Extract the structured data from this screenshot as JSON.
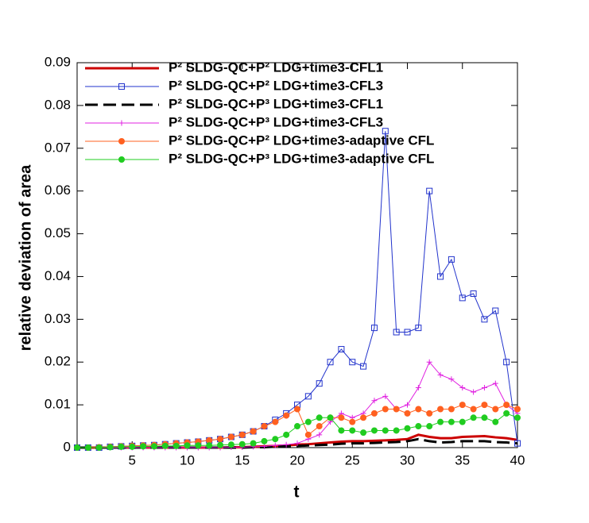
{
  "chart_data": {
    "type": "line",
    "x_label": "t",
    "y_label": "relative deviation of area",
    "x": [
      0,
      1,
      2,
      3,
      4,
      5,
      6,
      7,
      8,
      9,
      10,
      11,
      12,
      13,
      14,
      15,
      16,
      17,
      18,
      19,
      20,
      21,
      22,
      23,
      24,
      25,
      26,
      27,
      28,
      29,
      30,
      31,
      32,
      33,
      34,
      35,
      36,
      37,
      38,
      39,
      40
    ],
    "xlim": [
      0,
      40
    ],
    "xticks": [
      5,
      10,
      15,
      20,
      25,
      30,
      35,
      40
    ],
    "ylim": [
      0,
      0.09
    ],
    "yticks": [
      0,
      0.01,
      0.02,
      0.03,
      0.04,
      0.05,
      0.06,
      0.07,
      0.08,
      0.09
    ],
    "legend": "top",
    "series": [
      {
        "name": "P² SLDG-QC+P² LDG+time3-CFL1",
        "color": "#cc0000",
        "line": "thick-solid",
        "marker": "none",
        "values": [
          0,
          0,
          0,
          0,
          0,
          0,
          0,
          0,
          0,
          0,
          0,
          0,
          0,
          0,
          0.0001,
          0.0001,
          0.0002,
          0.0003,
          0.0004,
          0.0005,
          0.0007,
          0.0008,
          0.001,
          0.0012,
          0.0014,
          0.0015,
          0.0015,
          0.0016,
          0.0017,
          0.0018,
          0.002,
          0.003,
          0.0025,
          0.0022,
          0.0022,
          0.0025,
          0.0026,
          0.0027,
          0.0024,
          0.0022,
          0.0018
        ]
      },
      {
        "name": "P² SLDG-QC+P² LDG+time3-CFL3",
        "color": "#2233cc",
        "line": "thin",
        "marker": "square",
        "values": [
          0,
          0,
          0,
          0.0002,
          0.0003,
          0.0004,
          0.0005,
          0.0006,
          0.0008,
          0.001,
          0.0012,
          0.0014,
          0.0017,
          0.002,
          0.0025,
          0.003,
          0.0038,
          0.005,
          0.0065,
          0.008,
          0.01,
          0.012,
          0.015,
          0.02,
          0.023,
          0.02,
          0.019,
          0.028,
          0.074,
          0.027,
          0.027,
          0.028,
          0.06,
          0.04,
          0.044,
          0.035,
          0.036,
          0.03,
          0.032,
          0.02,
          0.001
        ]
      },
      {
        "name": "P² SLDG-QC+P³ LDG+time3-CFL1",
        "color": "#000000",
        "line": "thick-dashed",
        "marker": "none",
        "values": [
          0,
          0,
          0,
          0,
          0,
          0,
          0,
          0,
          0,
          0,
          0,
          0,
          0,
          0,
          0,
          0,
          0.0001,
          0.0001,
          0.0002,
          0.0003,
          0.0004,
          0.0005,
          0.0006,
          0.0007,
          0.0009,
          0.001,
          0.001,
          0.0011,
          0.0012,
          0.0013,
          0.0015,
          0.002,
          0.0015,
          0.0012,
          0.0013,
          0.0015,
          0.0015,
          0.0015,
          0.0013,
          0.0012,
          0.001
        ]
      },
      {
        "name": "P² SLDG-QC+P³ LDG+time3-CFL3",
        "color": "#e020e0",
        "line": "thin",
        "marker": "plus",
        "values": [
          0,
          0,
          0,
          0,
          0,
          0,
          0,
          0,
          0,
          0,
          0,
          0,
          0,
          0,
          0.0001,
          0.0001,
          0.0002,
          0.0003,
          0.0005,
          0.0007,
          0.001,
          0.002,
          0.003,
          0.006,
          0.008,
          0.007,
          0.008,
          0.011,
          0.012,
          0.009,
          0.01,
          0.014,
          0.02,
          0.017,
          0.016,
          0.014,
          0.013,
          0.014,
          0.015,
          0.01,
          0.008
        ]
      },
      {
        "name": "P² SLDG-QC+P² LDG+time3-adaptive CFL",
        "color": "#ff6020",
        "line": "thin",
        "marker": "circle",
        "values": [
          0,
          0,
          0.0001,
          0.0002,
          0.0003,
          0.0004,
          0.0005,
          0.0006,
          0.0008,
          0.001,
          0.0012,
          0.0014,
          0.0017,
          0.002,
          0.0025,
          0.003,
          0.0038,
          0.005,
          0.006,
          0.0075,
          0.009,
          0.003,
          0.005,
          0.007,
          0.007,
          0.006,
          0.007,
          0.008,
          0.009,
          0.009,
          0.008,
          0.009,
          0.008,
          0.009,
          0.009,
          0.01,
          0.009,
          0.01,
          0.009,
          0.01,
          0.009
        ]
      },
      {
        "name": "P² SLDG-QC+P³ LDG+time3-adaptive CFL",
        "color": "#20cc20",
        "line": "thin",
        "marker": "circle",
        "values": [
          0,
          0,
          0,
          0.0001,
          0.0002,
          0.0002,
          0.0003,
          0.0003,
          0.0004,
          0.0004,
          0.0005,
          0.0005,
          0.0005,
          0.0006,
          0.0007,
          0.0008,
          0.001,
          0.0015,
          0.002,
          0.003,
          0.005,
          0.006,
          0.007,
          0.007,
          0.004,
          0.004,
          0.0035,
          0.004,
          0.004,
          0.004,
          0.0045,
          0.005,
          0.005,
          0.006,
          0.006,
          0.006,
          0.007,
          0.007,
          0.006,
          0.008,
          0.007
        ]
      }
    ]
  }
}
